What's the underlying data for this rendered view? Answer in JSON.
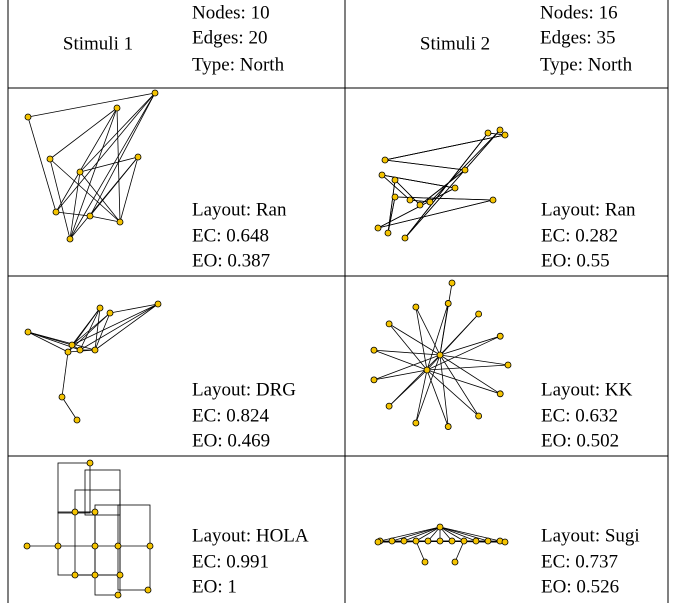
{
  "header": {
    "stimuli": [
      "Stimuli 1",
      "Stimuli 2"
    ],
    "info": [
      [
        "Nodes: 10",
        "Edges: 20",
        "Type: North"
      ],
      [
        "Nodes: 16",
        "Edges: 35",
        "Type: North"
      ]
    ]
  },
  "rows": [
    [
      [
        "Layout: Ran",
        "EC: 0.648",
        "EO: 0.387"
      ],
      [
        "Layout: Ran",
        "EC: 0.282",
        "EO: 0.55"
      ]
    ],
    [
      [
        "Layout: DRG",
        "EC: 0.824",
        "EO: 0.469"
      ],
      [
        "Layout: KK",
        "EC: 0.632",
        "EO: 0.502"
      ]
    ],
    [
      [
        "Layout: HOLA",
        "EC: 0.991",
        "EO: 1"
      ],
      [
        "Layout: Sugi",
        "EC: 0.737",
        "EO: 0.526"
      ]
    ]
  ]
}
